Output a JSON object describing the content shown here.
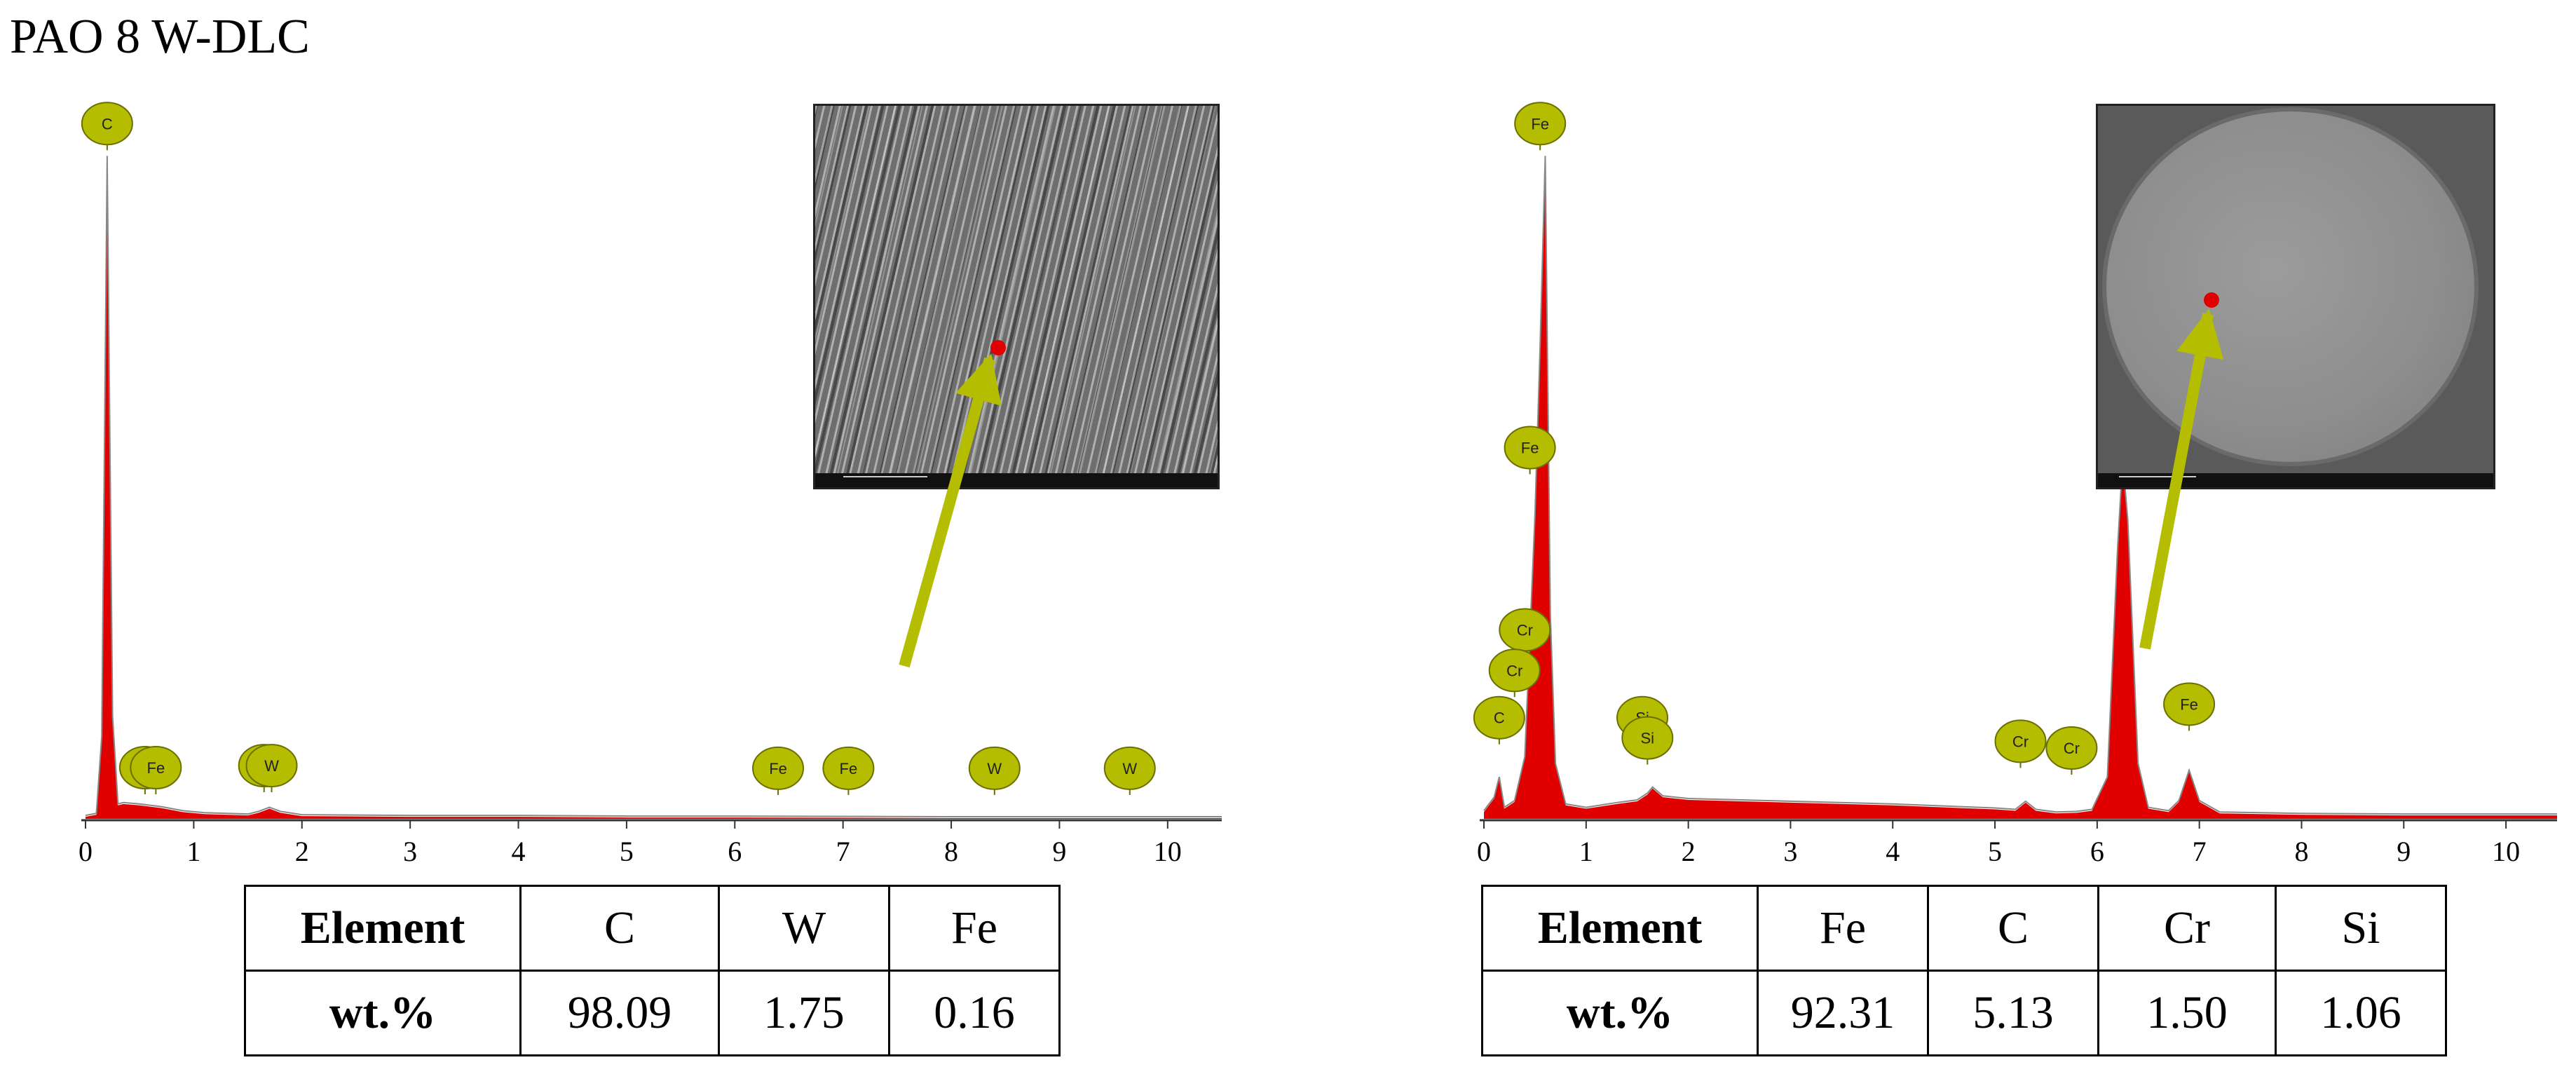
{
  "title": "PAO 8 W-DLC",
  "colors": {
    "spectrum_fill": "#e00000",
    "spectrum_line": "#888888",
    "marker_fill": "#b5bd00",
    "marker_stroke": "#6b6f00",
    "arrow": "#b5bd00",
    "axis": "#333333",
    "spot": "#e00000"
  },
  "chart_data": [
    {
      "type": "area",
      "title": "",
      "xlabel": "",
      "ylabel": "",
      "xlim": [
        0,
        10.5
      ],
      "ylim": [
        0,
        100
      ],
      "x_ticks": [
        "0",
        "1",
        "2",
        "3",
        "4",
        "5",
        "6",
        "7",
        "8",
        "9",
        "10"
      ],
      "grid": false,
      "series": [
        {
          "x": [
            0,
            0.1,
            0.15,
            0.2,
            0.25,
            0.3,
            0.35,
            0.5,
            0.7,
            0.9,
            1.1,
            1.5,
            1.6,
            1.7,
            1.8,
            2.0,
            3.0,
            4.0,
            5.0,
            6.0,
            7.0,
            8.0,
            9.0,
            10.0,
            10.5
          ],
          "y": [
            0.3,
            0.6,
            12,
            98,
            15,
            2.0,
            2.2,
            2.0,
            1.6,
            1.0,
            0.7,
            0.5,
            0.9,
            1.5,
            0.9,
            0.4,
            0.3,
            0.3,
            0.2,
            0.2,
            0.15,
            0.1,
            0.1,
            0.1,
            0.1
          ]
        }
      ],
      "peak_labels": [
        {
          "label": "C",
          "x": 0.2,
          "y": 98
        },
        {
          "label": "Fe",
          "x": 0.55,
          "y": 2.6
        },
        {
          "label": "Fe",
          "x": 0.65,
          "y": 2.6
        },
        {
          "label": "W",
          "x": 1.65,
          "y": 2.9
        },
        {
          "label": "W",
          "x": 1.72,
          "y": 2.9
        },
        {
          "label": "Fe",
          "x": 6.4,
          "y": 2.5
        },
        {
          "label": "Fe",
          "x": 7.05,
          "y": 2.5
        },
        {
          "label": "W",
          "x": 8.4,
          "y": 2.5
        },
        {
          "label": "W",
          "x": 9.65,
          "y": 2.5
        }
      ],
      "table": {
        "headers": [
          "Element",
          "C",
          "W",
          "Fe"
        ],
        "row_label": "wt.%",
        "values": [
          "98.09",
          "1.75",
          "0.16"
        ]
      }
    },
    {
      "type": "area",
      "title": "",
      "xlabel": "",
      "ylabel": "",
      "xlim": [
        0,
        10.5
      ],
      "ylim": [
        0,
        100
      ],
      "x_ticks": [
        "0",
        "1",
        "2",
        "3",
        "4",
        "5",
        "6",
        "7",
        "8",
        "9",
        "10"
      ],
      "grid": false,
      "series": [
        {
          "x": [
            0,
            0.1,
            0.15,
            0.2,
            0.3,
            0.4,
            0.5,
            0.55,
            0.6,
            0.65,
            0.7,
            0.8,
            1.0,
            1.3,
            1.5,
            1.6,
            1.65,
            1.75,
            2.0,
            3.0,
            4.0,
            5.0,
            5.2,
            5.3,
            5.4,
            5.6,
            5.8,
            5.95,
            6.1,
            6.2,
            6.25,
            6.3,
            6.4,
            6.5,
            6.7,
            6.8,
            6.9,
            7.0,
            7.2,
            8.0,
            9.0,
            10.0,
            10.5
          ],
          "y": [
            1,
            3,
            6,
            1.5,
            2.5,
            9,
            45,
            70,
            98,
            30,
            8,
            2,
            1.5,
            2.2,
            2.6,
            3.6,
            4.5,
            3.2,
            2.8,
            2.4,
            2.0,
            1.4,
            1.2,
            2.4,
            1.2,
            0.8,
            0.9,
            1.2,
            6,
            40,
            53,
            44,
            8,
            1.5,
            1.0,
            2.5,
            7,
            2.5,
            0.8,
            0.6,
            0.5,
            0.5,
            0.5
          ]
        }
      ],
      "peak_labels": [
        {
          "label": "Fe",
          "x": 0.55,
          "y": 98
        },
        {
          "label": "Fe",
          "x": 0.45,
          "y": 50
        },
        {
          "label": "Cr",
          "x": 0.4,
          "y": 23
        },
        {
          "label": "Cr",
          "x": 0.3,
          "y": 17
        },
        {
          "label": "C",
          "x": 0.15,
          "y": 10
        },
        {
          "label": "Si",
          "x": 1.55,
          "y": 10
        },
        {
          "label": "Si",
          "x": 1.6,
          "y": 7
        },
        {
          "label": "Cr",
          "x": 5.25,
          "y": 6.5
        },
        {
          "label": "Cr",
          "x": 5.75,
          "y": 5.5
        },
        {
          "label": "Fe",
          "x": 6.25,
          "y": 58
        },
        {
          "label": "Fe",
          "x": 6.9,
          "y": 12
        }
      ],
      "table": {
        "headers": [
          "Element",
          "Fe",
          "C",
          "Cr",
          "Si"
        ],
        "row_label": "wt.%",
        "values": [
          "92.31",
          "5.13",
          "1.50",
          "1.06"
        ]
      }
    }
  ]
}
